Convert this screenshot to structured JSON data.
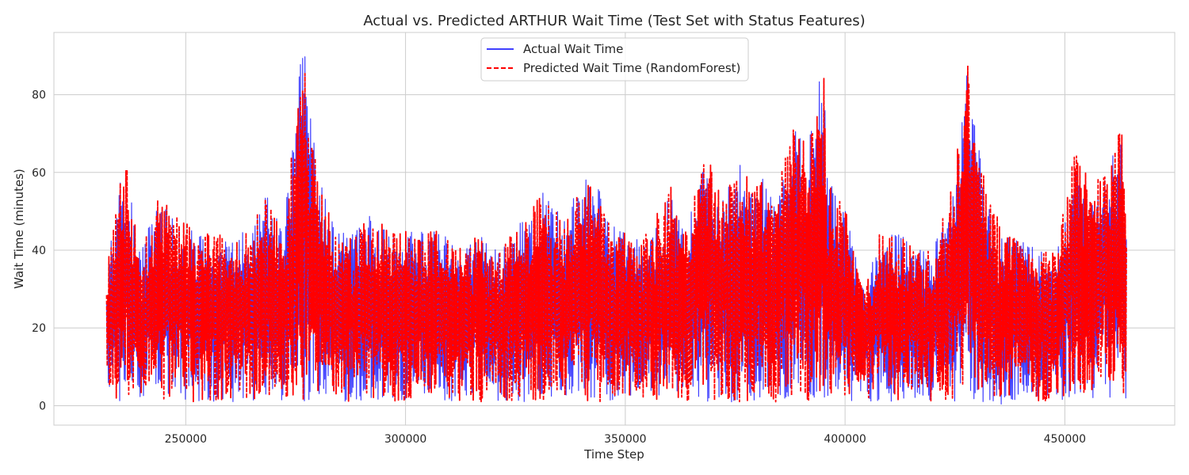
{
  "chart_data": {
    "type": "line",
    "title": "Actual vs. Predicted ARTHUR Wait Time (Test Set with Status Features)",
    "xlabel": "Time Step",
    "ylabel": "Wait Time (minutes)",
    "xlim": [
      220000,
      475000
    ],
    "ylim": [
      -5,
      96
    ],
    "x_ticks": [
      250000,
      300000,
      350000,
      400000,
      450000
    ],
    "x_tick_labels": [
      "250000",
      "300000",
      "350000",
      "400000",
      "450000"
    ],
    "y_ticks": [
      0,
      20,
      40,
      60,
      80
    ],
    "y_tick_labels": [
      "0",
      "20",
      "40",
      "60",
      "80"
    ],
    "grid": true,
    "legend_position": "top-center",
    "x_range": [
      232000,
      464000
    ],
    "series": [
      {
        "name": "Actual Wait Time",
        "color": "#0000ff",
        "style": "solid",
        "x": [
          232000,
          236000,
          240000,
          244000,
          248000,
          252000,
          256000,
          260000,
          264000,
          268000,
          272000,
          276000,
          277000,
          280000,
          284000,
          288000,
          292000,
          296000,
          300000,
          304000,
          308000,
          312000,
          316000,
          320000,
          324000,
          328000,
          332000,
          336000,
          340000,
          344000,
          348000,
          352000,
          356000,
          360000,
          364000,
          368000,
          372000,
          376000,
          380000,
          384000,
          388000,
          392000,
          395000,
          396000,
          400000,
          404000,
          408000,
          412000,
          416000,
          420000,
          424000,
          427000,
          428000,
          432000,
          436000,
          440000,
          444000,
          448000,
          452000,
          456000,
          460000,
          463000,
          464000
        ],
        "low": [
          1,
          1,
          1,
          1,
          1,
          1,
          1,
          1,
          1,
          1,
          1,
          1,
          1,
          1,
          1,
          1,
          1,
          1,
          1,
          1,
          1,
          1,
          1,
          1,
          1,
          1,
          1,
          1,
          1,
          1,
          1,
          1,
          1,
          1,
          1,
          1,
          1,
          1,
          1,
          1,
          1,
          1,
          1,
          1,
          0,
          1,
          1,
          1,
          1,
          1,
          1,
          1,
          1,
          1,
          0,
          1,
          1,
          1,
          1,
          1,
          1,
          1,
          1
        ],
        "high": [
          35,
          64,
          40,
          55,
          50,
          45,
          44,
          45,
          45,
          55,
          45,
          90,
          91,
          60,
          45,
          45,
          50,
          45,
          45,
          45,
          45,
          40,
          45,
          40,
          45,
          50,
          57,
          47,
          60,
          56,
          45,
          45,
          45,
          55,
          45,
          66,
          55,
          62,
          60,
          55,
          71,
          70,
          90,
          60,
          51,
          30,
          45,
          45,
          40,
          40,
          55,
          76,
          90,
          55,
          45,
          45,
          40,
          40,
          65,
          58,
          61,
          73,
          50
        ]
      },
      {
        "name": "Predicted Wait Time (RandomForest)",
        "color": "#ff0000",
        "style": "dashed",
        "x": [
          232000,
          236000,
          240000,
          244000,
          248000,
          252000,
          256000,
          260000,
          264000,
          268000,
          272000,
          276000,
          277000,
          280000,
          284000,
          288000,
          292000,
          296000,
          300000,
          304000,
          308000,
          312000,
          316000,
          320000,
          324000,
          328000,
          332000,
          336000,
          340000,
          344000,
          348000,
          352000,
          356000,
          360000,
          364000,
          368000,
          372000,
          376000,
          380000,
          384000,
          388000,
          392000,
          395000,
          396000,
          400000,
          404000,
          408000,
          412000,
          416000,
          420000,
          424000,
          427000,
          428000,
          432000,
          436000,
          440000,
          444000,
          448000,
          452000,
          456000,
          460000,
          463000,
          464000
        ],
        "low": [
          1,
          1,
          1,
          1,
          1,
          1,
          1,
          1,
          1,
          1,
          1,
          1,
          1,
          1,
          1,
          1,
          1,
          1,
          1,
          1,
          1,
          1,
          1,
          1,
          1,
          1,
          1,
          1,
          1,
          1,
          1,
          1,
          1,
          1,
          1,
          1,
          1,
          1,
          1,
          1,
          1,
          1,
          1,
          1,
          1,
          1,
          1,
          1,
          1,
          1,
          1,
          1,
          1,
          1,
          1,
          1,
          1,
          1,
          1,
          1,
          1,
          1,
          1
        ],
        "high": [
          35,
          65,
          40,
          56,
          50,
          45,
          44,
          45,
          45,
          55,
          45,
          89,
          91,
          60,
          45,
          45,
          50,
          45,
          45,
          45,
          45,
          40,
          45,
          40,
          45,
          50,
          57,
          47,
          60,
          56,
          45,
          45,
          45,
          60,
          45,
          66,
          55,
          62,
          60,
          55,
          71,
          70,
          91,
          60,
          51,
          30,
          45,
          45,
          40,
          40,
          55,
          76,
          91,
          55,
          46,
          45,
          40,
          40,
          67,
          58,
          61,
          73,
          50
        ]
      }
    ]
  }
}
